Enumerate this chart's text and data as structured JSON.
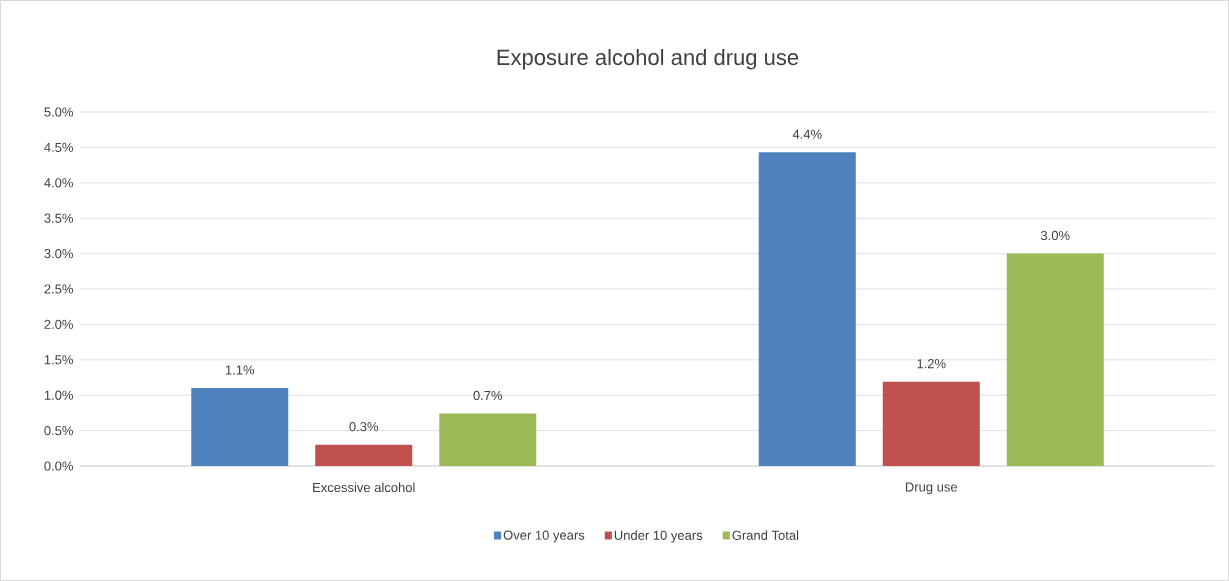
{
  "chart_data": {
    "type": "bar",
    "title": "Exposure alcohol and drug use",
    "categories": [
      "Excessive alcohol",
      "Drug use"
    ],
    "series": [
      {
        "name": "Over 10 years",
        "color": "#4f81bd",
        "values": [
          1.1,
          4.43
        ],
        "value_labels": [
          "1.1%",
          "4.4%"
        ]
      },
      {
        "name": "Under 10 years",
        "color": "#c0504d",
        "values": [
          0.3,
          1.19
        ],
        "value_labels": [
          "0.3%",
          "1.2%"
        ]
      },
      {
        "name": "Grand Total",
        "color": "#9bbb59",
        "values": [
          0.74,
          3.0
        ],
        "value_labels": [
          "0.7%",
          "3.0%"
        ]
      }
    ],
    "ylim": [
      0,
      5
    ],
    "yticks": [
      {
        "value": 0,
        "label": "0.0%"
      },
      {
        "value": 0.5,
        "label": "0.5%"
      },
      {
        "value": 1,
        "label": "1.0%"
      },
      {
        "value": 1.5,
        "label": "1.5%"
      },
      {
        "value": 2,
        "label": "2.0%"
      },
      {
        "value": 2.5,
        "label": "2.5%"
      },
      {
        "value": 3,
        "label": "3.0%"
      },
      {
        "value": 3.5,
        "label": "3.5%"
      },
      {
        "value": 4,
        "label": "4.0%"
      },
      {
        "value": 4.5,
        "label": "4.5%"
      },
      {
        "value": 5,
        "label": "5.0%"
      }
    ],
    "grid": "y",
    "legend": "bottom"
  }
}
